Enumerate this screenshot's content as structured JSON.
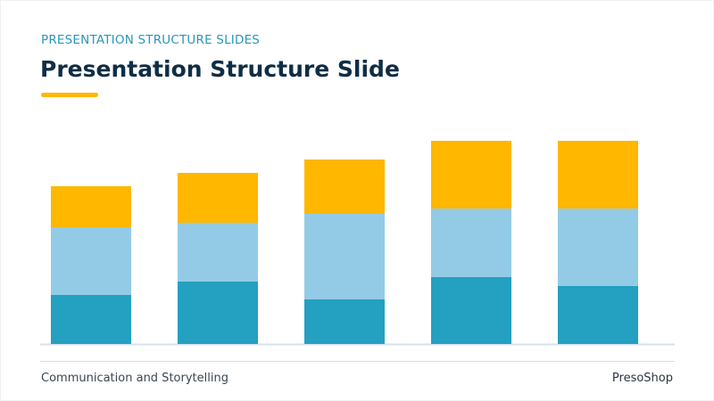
{
  "slide": {
    "kicker": "PRESENTATION STRUCTURE SLIDES",
    "title": "Presentation Structure Slide",
    "footer_left": "Communication and Storytelling",
    "footer_right": "PresoShop"
  },
  "colors": {
    "accent": "#ffb700",
    "title": "#0f2e46",
    "kicker": "#2a97b8"
  },
  "chart_data": {
    "type": "bar",
    "stacked": true,
    "categories": [
      "",
      "",
      "",
      "",
      ""
    ],
    "ylim": [
      0,
      228
    ],
    "grid": false,
    "legend": "none",
    "series": [
      {
        "values": [
          55,
          70,
          50,
          75,
          65
        ],
        "color": "#24a0c0"
      },
      {
        "values": [
          76,
          66,
          96,
          77,
          87
        ],
        "color": "#93cbe6"
      },
      {
        "values": [
          46,
          56,
          61,
          76,
          76
        ],
        "color": "#ffb700"
      }
    ]
  }
}
